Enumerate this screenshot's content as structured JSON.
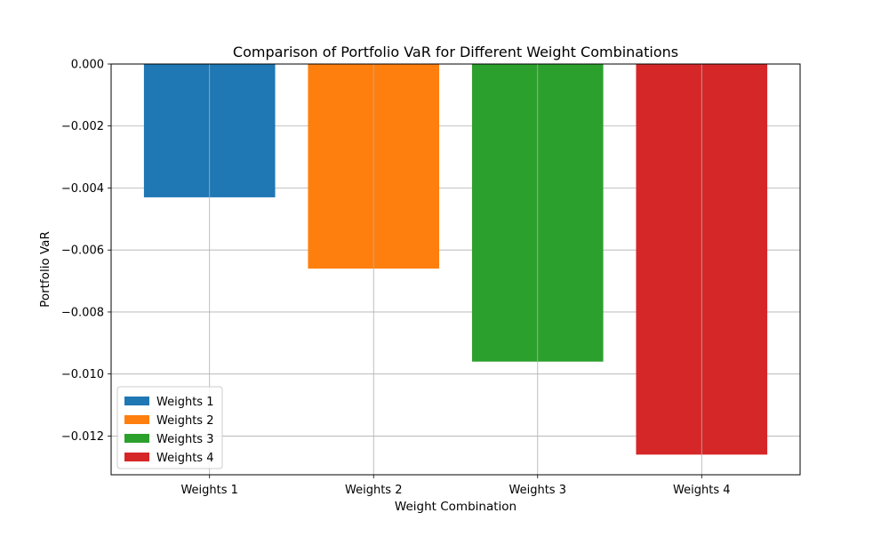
{
  "chart_data": {
    "type": "bar",
    "title": "Comparison of Portfolio VaR for Different Weight Combinations",
    "xlabel": "Weight Combination",
    "ylabel": "Portfolio VaR",
    "categories": [
      "Weights 1",
      "Weights 2",
      "Weights 3",
      "Weights 4"
    ],
    "values": [
      -0.0043,
      -0.0066,
      -0.0096,
      -0.0126
    ],
    "colors": [
      "#1f77b4",
      "#ff7f0e",
      "#2ca02c",
      "#d62728"
    ],
    "ylim": [
      -0.01325,
      0.0
    ],
    "yticks": [
      0.0,
      -0.002,
      -0.004,
      -0.006,
      -0.008,
      -0.01,
      -0.012
    ],
    "ytick_labels": [
      "0.000",
      "−0.002",
      "−0.004",
      "−0.006",
      "−0.008",
      "−0.010",
      "−0.012"
    ],
    "grid": true,
    "legend": {
      "position": "lower-left",
      "entries": [
        "Weights 1",
        "Weights 2",
        "Weights 3",
        "Weights 4"
      ]
    }
  }
}
